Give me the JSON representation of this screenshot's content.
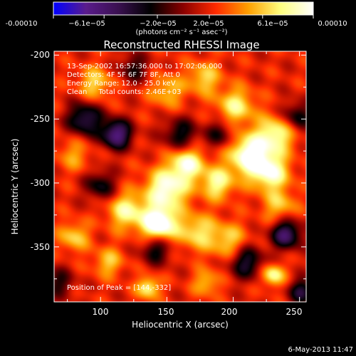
{
  "chart_data": {
    "type": "heatmap",
    "title": "Reconstructed RHESSI Image",
    "xlabel": "Heliocentric X (arcsec)",
    "ylabel": "Heliocentric Y (arcsec)",
    "xlim": [
      65,
      255
    ],
    "ylim": [
      -393,
      -197
    ],
    "x_ticks": [
      100,
      150,
      200,
      250
    ],
    "y_ticks": [
      -200,
      -250,
      -300,
      -350
    ],
    "colorbar": {
      "min": -0.0001,
      "max": 0.0001,
      "tick_values": [
        -0.0001,
        -6.1e-05,
        -2e-05,
        2e-05,
        6.1e-05,
        0.0001
      ],
      "tick_labels": [
        "-0.00010",
        "−6.1e−05",
        "−2.0e−05",
        "2.0e−05",
        "6.1e−05",
        "0.00010"
      ],
      "units": "(photons cm⁻² s⁻¹ asec⁻²)",
      "colors": [
        "#0000ff",
        "#5a1c8c",
        "#3a1050",
        "#000000",
        "#8a0000",
        "#ff2a00",
        "#ffa000",
        "#ffff80",
        "#ffffff"
      ]
    },
    "annotations": [
      "13-Sep-2002 16:57:36.000 to 17:02:06.000",
      "Detectors: 4F 5F 6F 7F 8F, Att 0",
      "Energy Range: 12.0 - 25.0 keV",
      "Clean     Total counts: 2.46E+03"
    ],
    "peak_label": "Position of Peak = [144,-332]",
    "peak": [
      144,
      -332
    ],
    "sources": [
      {
        "x": 144,
        "y": -332,
        "value": 0.0001,
        "spread": 9
      },
      {
        "x": 150,
        "y": -305,
        "value": 8e-05,
        "spread": 11
      },
      {
        "x": 165,
        "y": -285,
        "value": 7.2e-05,
        "spread": 9
      },
      {
        "x": 120,
        "y": -322,
        "value": 6e-05,
        "spread": 10
      },
      {
        "x": 212,
        "y": -278,
        "value": 8.5e-05,
        "spread": 11
      },
      {
        "x": 228,
        "y": -292,
        "value": 7e-05,
        "spread": 10
      },
      {
        "x": 232,
        "y": -262,
        "value": 6.5e-05,
        "spread": 10
      },
      {
        "x": 202,
        "y": -240,
        "value": 5.5e-05,
        "spread": 10
      },
      {
        "x": 188,
        "y": -300,
        "value": 6e-05,
        "spread": 9
      },
      {
        "x": 172,
        "y": -338,
        "value": 5e-05,
        "spread": 10
      },
      {
        "x": 196,
        "y": -345,
        "value": 4.5e-05,
        "spread": 10
      },
      {
        "x": 235,
        "y": -318,
        "value": 4e-05,
        "spread": 9
      },
      {
        "x": 230,
        "y": -372,
        "value": 6.5e-05,
        "spread": 6
      },
      {
        "x": 178,
        "y": -218,
        "value": 4.5e-05,
        "spread": 9
      },
      {
        "x": 150,
        "y": -228,
        "value": 4e-05,
        "spread": 9
      },
      {
        "x": 96,
        "y": -222,
        "value": 4.5e-05,
        "spread": 9
      },
      {
        "x": 80,
        "y": -278,
        "value": 3e-05,
        "spread": 9
      },
      {
        "x": 80,
        "y": -342,
        "value": 4.5e-05,
        "spread": 8
      },
      {
        "x": 106,
        "y": -362,
        "value": 4e-05,
        "spread": 8
      },
      {
        "x": 136,
        "y": -382,
        "value": 6e-05,
        "spread": 6
      },
      {
        "x": 180,
        "y": -378,
        "value": 4e-05,
        "spread": 7
      },
      {
        "x": 112,
        "y": -262,
        "value": -9e-05,
        "spread": 8
      },
      {
        "x": 88,
        "y": -250,
        "value": -7e-05,
        "spread": 9
      },
      {
        "x": 160,
        "y": -262,
        "value": -5e-05,
        "spread": 9
      },
      {
        "x": 142,
        "y": -352,
        "value": -5e-05,
        "spread": 8
      },
      {
        "x": 210,
        "y": -362,
        "value": -6e-05,
        "spread": 9
      },
      {
        "x": 240,
        "y": -340,
        "value": -8e-05,
        "spread": 8
      },
      {
        "x": 248,
        "y": -248,
        "value": -5e-05,
        "spread": 8
      },
      {
        "x": 100,
        "y": -302,
        "value": -5e-05,
        "spread": 8
      },
      {
        "x": 252,
        "y": -385,
        "value": -6e-05,
        "spread": 7
      },
      {
        "x": 68,
        "y": -378,
        "value": -4e-05,
        "spread": 8
      },
      {
        "x": 190,
        "y": -262,
        "value": -4e-05,
        "spread": 8
      },
      {
        "x": 125,
        "y": -210,
        "value": -4e-05,
        "spread": 8
      }
    ]
  },
  "footer": {
    "timestamp": "6-May-2013 11:47"
  }
}
